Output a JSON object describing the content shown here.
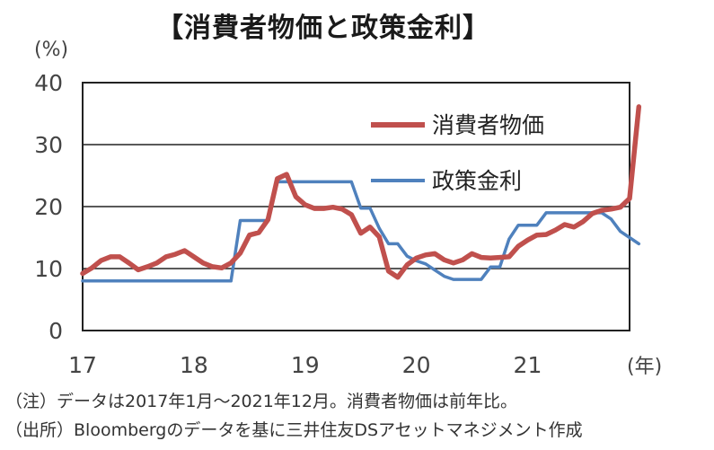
{
  "title": "【消費者物価と政策金利】",
  "notes": {
    "note": "（注）データは2017年1月～2021年12月。消費者物価は前年比。",
    "source": "（出所）Bloombergのデータを基に三井住友DSアセットマネジメント作成"
  },
  "chart_data": {
    "type": "line",
    "title": "【消費者物価と政策金利】",
    "ylabel": "(%)",
    "xlabel": "(年)",
    "ylim": [
      0,
      40
    ],
    "yticks": [
      0,
      10,
      20,
      30,
      40
    ],
    "xlim": [
      0,
      59
    ],
    "xtick_labels": [
      "17",
      "18",
      "19",
      "20",
      "21"
    ],
    "grid": true,
    "legend": "top-right",
    "series": [
      {
        "name": "消費者物価",
        "color": "#c0504d",
        "values": [
          9.2,
          10.1,
          11.3,
          11.9,
          11.9,
          10.9,
          9.8,
          10.3,
          10.9,
          11.9,
          12.3,
          12.9,
          11.9,
          10.9,
          10.3,
          10.1,
          10.9,
          12.5,
          15.4,
          15.8,
          17.9,
          24.5,
          25.2,
          21.6,
          20.3,
          19.7,
          19.7,
          19.9,
          19.6,
          18.7,
          15.7,
          16.7,
          15.1,
          9.6,
          8.6,
          10.6,
          11.7,
          12.2,
          12.4,
          11.4,
          10.9,
          11.4,
          12.4,
          11.8,
          11.7,
          11.8,
          11.9,
          13.6,
          14.6,
          15.4,
          15.5,
          16.2,
          17.1,
          16.7,
          17.6,
          18.9,
          19.4,
          19.6,
          19.9,
          21.3,
          36.1
        ]
      },
      {
        "name": "政策金利",
        "color": "#4f81bd",
        "values": [
          8.0,
          8.0,
          8.0,
          8.0,
          8.0,
          8.0,
          8.0,
          8.0,
          8.0,
          8.0,
          8.0,
          8.0,
          8.0,
          8.0,
          8.0,
          8.0,
          8.0,
          17.75,
          17.75,
          17.75,
          17.75,
          24.0,
          24.0,
          24.0,
          24.0,
          24.0,
          24.0,
          24.0,
          24.0,
          24.0,
          19.75,
          19.75,
          16.5,
          14.0,
          14.0,
          12.0,
          11.25,
          10.75,
          9.75,
          8.75,
          8.25,
          8.25,
          8.25,
          8.25,
          10.25,
          10.25,
          14.75,
          17.0,
          17.0,
          17.0,
          19.0,
          19.0,
          19.0,
          19.0,
          19.0,
          19.0,
          19.0,
          18.0,
          16.0,
          15.0,
          14.0
        ]
      }
    ]
  }
}
